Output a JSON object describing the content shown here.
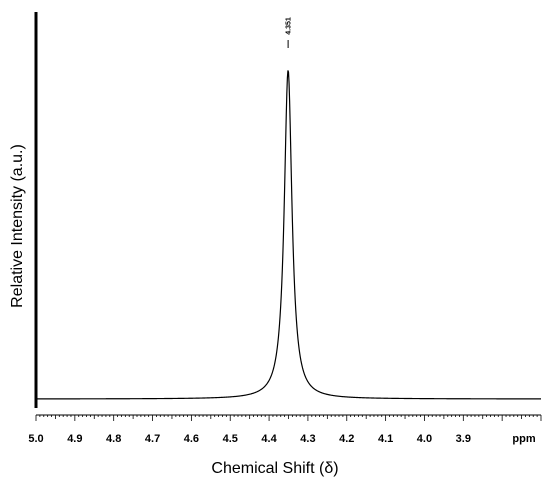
{
  "chart_data": {
    "type": "line",
    "xlabel": "Chemical Shift (δ)",
    "ylabel": "Relative Intensity (a.u.)",
    "x_unit_label": "ppm",
    "x_reversed": true,
    "xlim": [
      5.0,
      3.7
    ],
    "ylim": [
      0,
      1
    ],
    "x_ticks": [
      "5.0",
      "4.9",
      "4.8",
      "4.7",
      "4.6",
      "4.5",
      "4.4",
      "4.3",
      "4.2",
      "4.1",
      "4.0",
      "3.9"
    ],
    "grid": false,
    "legend": "none",
    "series": [
      {
        "color": "#000000",
        "peak": {
          "x": 4.351,
          "label": "4.351",
          "height": 1.0
        },
        "baseline": 0.0,
        "halfwidth_ppm": 0.012,
        "x": [
          5.0,
          4.8,
          4.6,
          4.5,
          4.45,
          4.42,
          4.4,
          4.38,
          4.37,
          4.36,
          4.355,
          4.351,
          4.347,
          4.34,
          4.33,
          4.32,
          4.3,
          4.28,
          4.25,
          4.2,
          4.1,
          4.0,
          3.9,
          3.7
        ],
        "y": [
          0.003,
          0.004,
          0.009,
          0.014,
          0.024,
          0.04,
          0.06,
          0.13,
          0.25,
          0.62,
          0.9,
          1.0,
          0.9,
          0.55,
          0.25,
          0.13,
          0.065,
          0.04,
          0.024,
          0.013,
          0.006,
          0.004,
          0.003,
          0.002
        ]
      }
    ]
  }
}
